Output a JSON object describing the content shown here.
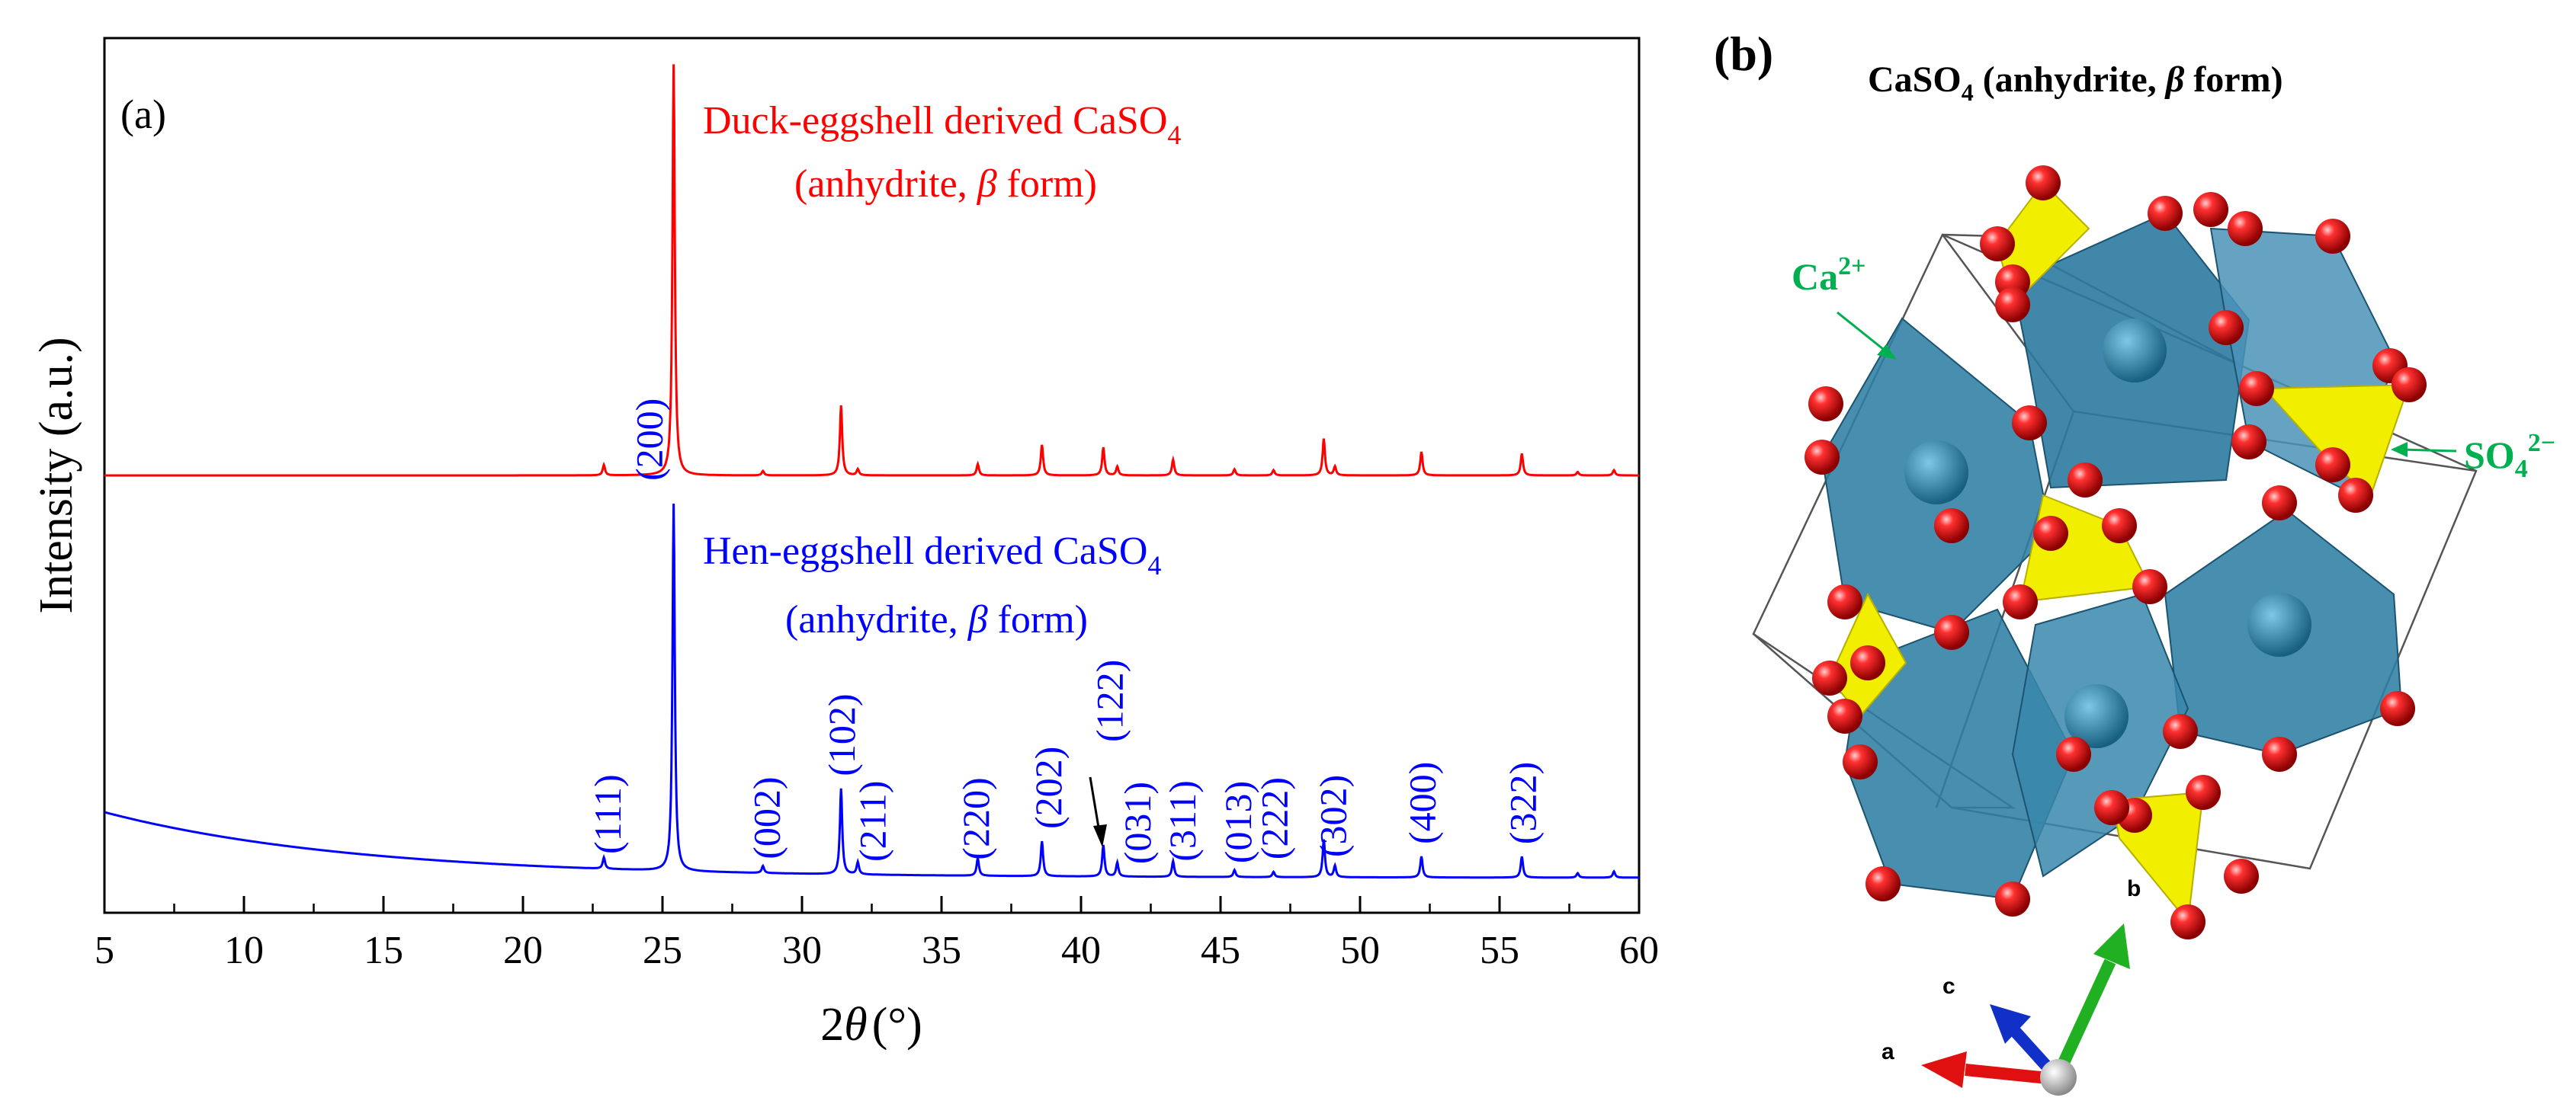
{
  "chart_data": {
    "type": "line",
    "panel_label": "(a)",
    "xlabel_prefix": "2",
    "xlabel_symbol": "θ",
    "xlabel_unit": "(°)",
    "ylabel": "Intensity (a.u.)",
    "xlim": [
      5,
      60
    ],
    "ylim": [
      0,
      100
    ],
    "x_ticks": [
      5,
      10,
      15,
      20,
      25,
      30,
      35,
      40,
      45,
      50,
      55,
      60
    ],
    "x_tick_labels": [
      "5",
      "10",
      "15",
      "20",
      "25",
      "30",
      "35",
      "40",
      "45",
      "50",
      "55",
      "60"
    ],
    "series": [
      {
        "name": "Duck-eggshell derived CaSO4",
        "label_line1": "Duck-eggshell derived CaSO",
        "label_sub": "4",
        "label_line2_a": "(anhydrite, ",
        "label_line2_symbol": "β",
        "label_line2_b": " form)",
        "color": "#ff0000",
        "baseline": 50,
        "peaks": [
          [
            22.9,
            1.2
          ],
          [
            25.4,
            47.0
          ],
          [
            28.6,
            0.5
          ],
          [
            31.4,
            8.0
          ],
          [
            32.0,
            0.7
          ],
          [
            36.3,
            1.3
          ],
          [
            38.6,
            3.5
          ],
          [
            40.8,
            3.2
          ],
          [
            41.3,
            1.0
          ],
          [
            43.3,
            1.8
          ],
          [
            45.5,
            0.7
          ],
          [
            46.9,
            0.6
          ],
          [
            48.7,
            4.2
          ],
          [
            49.1,
            1.0
          ],
          [
            52.2,
            2.7
          ],
          [
            55.8,
            2.5
          ],
          [
            57.8,
            0.4
          ],
          [
            59.1,
            0.6
          ]
        ]
      },
      {
        "name": "Hen-eggshell derived CaSO4",
        "label_line1": "Hen-eggshell derived CaSO",
        "label_sub": "4",
        "label_line2_a": "(anhydrite, ",
        "label_line2_symbol": "β",
        "label_line2_b": " form)",
        "color": "#0000ff",
        "baseline": 4,
        "background_start": 7.5,
        "peaks": [
          [
            22.9,
            1.3
          ],
          [
            25.4,
            42.0
          ],
          [
            28.6,
            0.8
          ],
          [
            31.4,
            9.8
          ],
          [
            32.0,
            1.4
          ],
          [
            36.3,
            2.0
          ],
          [
            38.6,
            4.0
          ],
          [
            40.8,
            3.6
          ],
          [
            41.3,
            1.6
          ],
          [
            43.3,
            1.8
          ],
          [
            45.5,
            0.8
          ],
          [
            46.9,
            0.6
          ],
          [
            48.7,
            4.3
          ],
          [
            49.1,
            1.3
          ],
          [
            52.2,
            2.4
          ],
          [
            55.8,
            2.4
          ],
          [
            57.8,
            0.5
          ],
          [
            59.1,
            0.7
          ]
        ]
      }
    ],
    "peak_labels": [
      {
        "x": 23.0,
        "text": "(111)"
      },
      {
        "x": 24.5,
        "text": "(200)"
      },
      {
        "x": 28.7,
        "text": "(002)"
      },
      {
        "x": 31.4,
        "text": "(102)"
      },
      {
        "x": 32.5,
        "text": "(211)"
      },
      {
        "x": 36.2,
        "text": "(220)"
      },
      {
        "x": 38.8,
        "text": "(202)"
      },
      {
        "x": 41.0,
        "text": "(122)"
      },
      {
        "x": 42.0,
        "text": "(031)"
      },
      {
        "x": 43.6,
        "text": "(311)"
      },
      {
        "x": 45.6,
        "text": "(013)"
      },
      {
        "x": 46.9,
        "text": "(222)"
      },
      {
        "x": 49.0,
        "text": "(302)"
      },
      {
        "x": 52.2,
        "text": "(400)"
      },
      {
        "x": 55.8,
        "text": "(322)"
      }
    ]
  },
  "structure_panel": {
    "panel_label": "(b)",
    "title_main": "CaSO",
    "title_sub": "4",
    "title_rest_a": " (anhydrite, ",
    "title_symbol": "β",
    "title_rest_b": " form)",
    "ca_label": "Ca",
    "ca_sup": "2+",
    "so4_label": "SO",
    "so4_sub": "4",
    "so4_sup": "2−",
    "axis_a": "a",
    "axis_b": "b",
    "axis_c": "c",
    "colors": {
      "octahedron": "#2e7ea4",
      "tetrahedron": "#f2ee00",
      "oxygen": "#e01010",
      "annotation": "#00b050"
    }
  }
}
